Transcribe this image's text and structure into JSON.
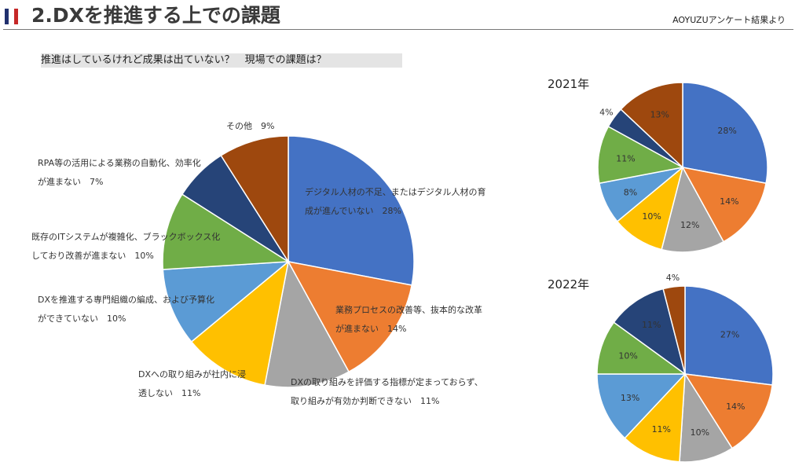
{
  "header": {
    "title": "2.DXを推進する上での課題",
    "source": "AOYUZUアンケート結果より"
  },
  "question": "推進はしているけれど成果は出ていない？　現場での課題は？",
  "chart_data": [
    {
      "type": "pie",
      "title": "",
      "colors": [
        "#4472c4",
        "#ed7d31",
        "#a5a5a5",
        "#ffc000",
        "#5b9bd5",
        "#70ad47",
        "#264478",
        "#9e480e"
      ],
      "slices": [
        {
          "label_lines": [
            "デジタル人材の不足、またはデジタル人材の育",
            "成が進んでいない　28%"
          ],
          "value": 28
        },
        {
          "label_lines": [
            "業務プロセスの改善等、抜本的な改革",
            "が進まない　14%"
          ],
          "value": 14
        },
        {
          "label_lines": [
            "DXの取り組みを評価する指標が定まっておらず、",
            "取り組みが有効か判断できない　11%"
          ],
          "value": 11
        },
        {
          "label_lines": [
            "DXへの取り組みが社内に浸",
            "透しない　11%"
          ],
          "value": 11
        },
        {
          "label_lines": [
            "DXを推進する専門組織の編成、および予算化",
            "ができていない　10%"
          ],
          "value": 10
        },
        {
          "label_lines": [
            "既存のITシステムが複雑化、ブラックボックス化",
            "しており改善が進まない　10%"
          ],
          "value": 10
        },
        {
          "label_lines": [
            "RPA等の活用による業務の自動化、効率化",
            "が進まない　7%"
          ],
          "value": 7
        },
        {
          "label_lines": [
            "その他　9%"
          ],
          "value": 9
        }
      ]
    },
    {
      "type": "pie",
      "title": "2021年",
      "colors": [
        "#4472c4",
        "#ed7d31",
        "#a5a5a5",
        "#ffc000",
        "#5b9bd5",
        "#70ad47",
        "#264478",
        "#9e480e"
      ],
      "values": [
        28,
        14,
        12,
        10,
        8,
        11,
        4,
        13
      ],
      "labels": [
        "28%",
        "14%",
        "12%",
        "10%",
        "8%",
        "11%",
        "4%",
        "13%"
      ]
    },
    {
      "type": "pie",
      "title": "2022年",
      "colors": [
        "#4472c4",
        "#ed7d31",
        "#a5a5a5",
        "#ffc000",
        "#5b9bd5",
        "#70ad47",
        "#264478",
        "#9e480e"
      ],
      "values": [
        27,
        14,
        10,
        11,
        13,
        10,
        11,
        4
      ],
      "labels": [
        "27%",
        "14%",
        "10%",
        "11%",
        "13%",
        "10%",
        "11%",
        "4%"
      ]
    }
  ]
}
